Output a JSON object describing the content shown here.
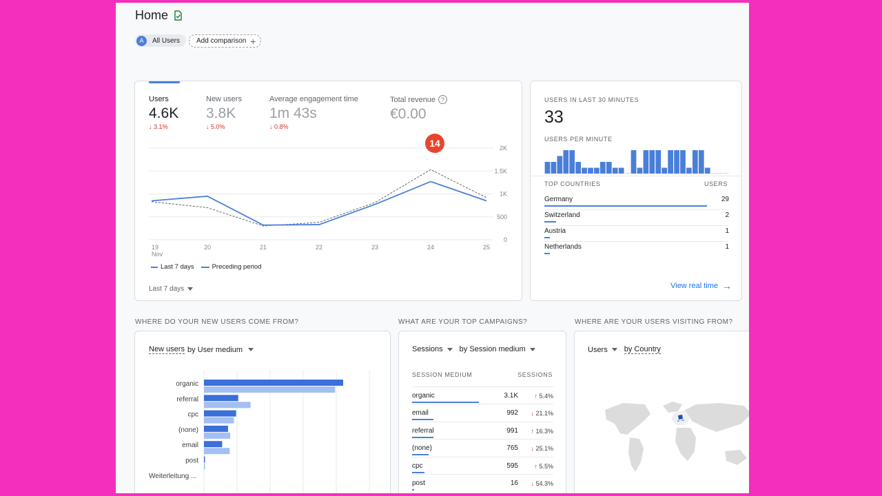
{
  "header": {
    "title": "Home"
  },
  "chips": {
    "avatar_letter": "A",
    "all_users": "All Users",
    "add_comparison": "Add comparison"
  },
  "overview": {
    "metrics": [
      {
        "label": "Users",
        "value": "4.6K",
        "delta": "↓ 3.1%"
      },
      {
        "label": "New users",
        "value": "3.8K",
        "delta": "↓ 5.0%"
      },
      {
        "label": "Average engagement time",
        "value": "1m 43s",
        "delta": "↓ 0.8%"
      },
      {
        "label": "Total revenue",
        "value": "€0.00"
      }
    ],
    "badge": "14",
    "legend": {
      "current": "Last 7 days",
      "previous": "Preceding period"
    },
    "date_range": "Last 7 days"
  },
  "chart_data": [
    {
      "type": "line",
      "x": [
        "19",
        "20",
        "21",
        "22",
        "23",
        "24",
        "25"
      ],
      "x_sublabel": "Nov",
      "series": [
        {
          "name": "Last 7 days",
          "values": [
            850,
            950,
            320,
            330,
            770,
            1270,
            850
          ],
          "color": "#4a7fd9",
          "style": "solid"
        },
        {
          "name": "Preceding period",
          "values": [
            830,
            700,
            300,
            380,
            810,
            1530,
            920
          ],
          "color": "#5f6368",
          "style": "dashed"
        }
      ],
      "yticks": [
        "2K",
        "1.5K",
        "1K",
        "500",
        "0"
      ],
      "ylim": [
        0,
        2000
      ],
      "grid": true
    },
    {
      "type": "bar",
      "categories": [
        "1",
        "2",
        "3",
        "4",
        "5",
        "6",
        "7",
        "8",
        "9",
        "10",
        "11",
        "12",
        "13",
        "14",
        "15",
        "16",
        "17",
        "18",
        "19",
        "20",
        "21",
        "22",
        "23",
        "24",
        "25",
        "26",
        "27",
        "28",
        "29",
        "30"
      ],
      "values": [
        2,
        2,
        3,
        4,
        4,
        2,
        1,
        1,
        1,
        2,
        2,
        1,
        1,
        0,
        4,
        1,
        4,
        4,
        4,
        1,
        4,
        4,
        4,
        1,
        4,
        4,
        1,
        0,
        0,
        0
      ],
      "color": "#4a7fd9"
    },
    {
      "type": "bar",
      "categories": [
        "organic",
        "referral",
        "cpc",
        "(none)",
        "email",
        "post",
        "Weiterleitung ..."
      ],
      "series": [
        {
          "values": [
            2600,
            640,
            600,
            450,
            340,
            10,
            0
          ],
          "color": "#3b6fd9"
        },
        {
          "values": [
            2450,
            870,
            560,
            490,
            480,
            10,
            0
          ],
          "color": "#a3bff4"
        }
      ],
      "grid": true
    }
  ],
  "realtime": {
    "title": "USERS IN LAST 30 MINUTES",
    "value": "33",
    "per_minute": "USERS PER MINUTE",
    "countries_header": "TOP COUNTRIES",
    "users_header": "USERS",
    "countries": [
      {
        "name": "Germany",
        "value": "29",
        "share": 1.0
      },
      {
        "name": "Switzerland",
        "value": "2",
        "share": 0.07
      },
      {
        "name": "Austria",
        "value": "1",
        "share": 0.035
      },
      {
        "name": "Netherlands",
        "value": "1",
        "share": 0.035
      }
    ],
    "view_realtime": "View real time"
  },
  "sections": {
    "new_users": "WHERE DO YOUR NEW USERS COME FROM?",
    "campaigns": "WHAT ARE YOUR TOP CAMPAIGNS?",
    "visiting": "WHERE ARE YOUR USERS VISITING FROM?"
  },
  "new_users_card": {
    "metric": "New users",
    "by": "by User medium"
  },
  "campaigns_card": {
    "metric": "Sessions",
    "by": "by Session medium",
    "col1": "SESSION MEDIUM",
    "col2": "SESSIONS",
    "rows": [
      {
        "name": "organic",
        "value": "3.1K",
        "delta": "5.4%",
        "dir": "up",
        "share": 1.0
      },
      {
        "name": "email",
        "value": "992",
        "delta": "21.1%",
        "dir": "down",
        "share": 0.32
      },
      {
        "name": "referral",
        "value": "991",
        "delta": "16.3%",
        "dir": "up",
        "share": 0.32
      },
      {
        "name": "(none)",
        "value": "765",
        "delta": "25.1%",
        "dir": "down",
        "share": 0.25
      },
      {
        "name": "cpc",
        "value": "595",
        "delta": "5.5%",
        "dir": "up",
        "share": 0.19
      },
      {
        "name": "post",
        "value": "16",
        "delta": "54.3%",
        "dir": "down",
        "share": 0.01
      }
    ]
  },
  "country_card": {
    "metric": "Users",
    "by": "by Country"
  },
  "colors": {
    "accent": "#4a7fd9",
    "positive": "#188038",
    "negative": "#d93025",
    "badge": "#e8452c"
  }
}
